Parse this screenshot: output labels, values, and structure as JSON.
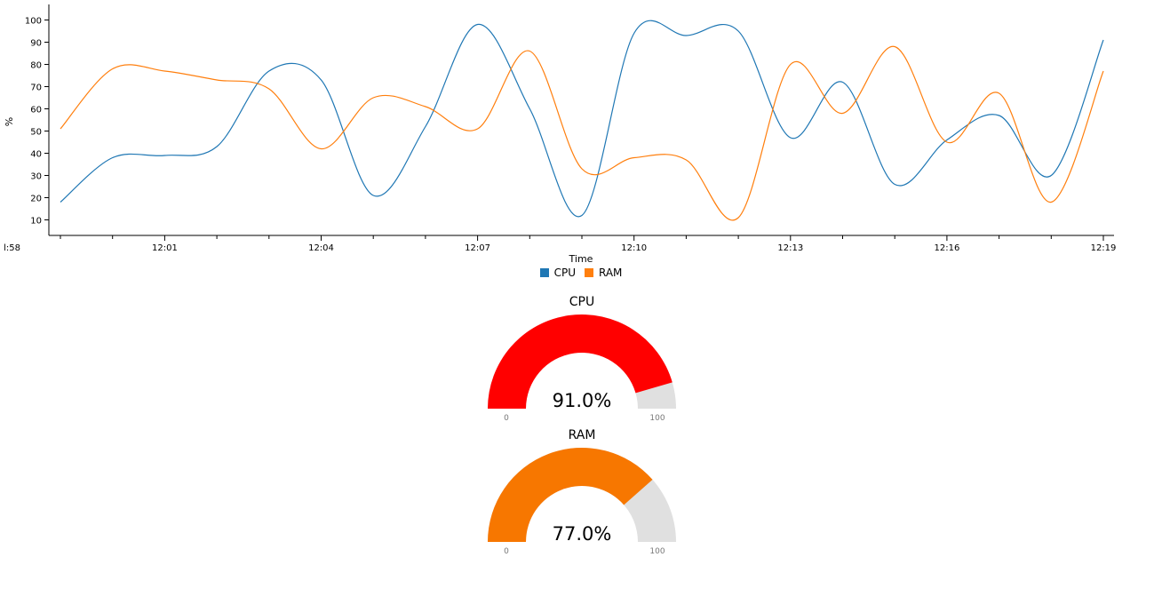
{
  "chart_data": {
    "type": "line",
    "xlabel": "Time",
    "ylabel": "%",
    "ylim": [
      3,
      107
    ],
    "y_ticks": [
      10,
      20,
      30,
      40,
      50,
      60,
      70,
      80,
      90,
      100
    ],
    "x_tick_labels": [
      "l:58",
      "12:01",
      "12:04",
      "12:07",
      "12:10",
      "12:13",
      "12:16",
      "12:19"
    ],
    "x": [
      "11:59",
      "12:00",
      "12:01",
      "12:02",
      "12:03",
      "12:04",
      "12:05",
      "12:06",
      "12:07",
      "12:08",
      "12:09",
      "12:10",
      "12:11",
      "12:12",
      "12:13",
      "12:14",
      "12:15",
      "12:16",
      "12:17",
      "12:18",
      "12:19"
    ],
    "series": [
      {
        "name": "CPU",
        "color": "#1f77b4",
        "values": [
          18,
          38,
          39,
          43,
          77,
          73,
          21,
          52,
          98,
          60,
          12,
          94,
          93,
          95,
          47,
          72,
          26,
          46,
          57,
          30,
          91
        ]
      },
      {
        "name": "RAM",
        "color": "#ff7f0e",
        "values": [
          51,
          78,
          77,
          73,
          69,
          42,
          65,
          61,
          51,
          86,
          33,
          38,
          37,
          11,
          80,
          58,
          88,
          45,
          67,
          18,
          77
        ]
      }
    ]
  },
  "gauges": [
    {
      "title": "CPU",
      "value": 91.0,
      "display": "91.0%",
      "min_label": "0",
      "max_label": "100",
      "color": "#ff0000"
    },
    {
      "title": "RAM",
      "value": 77.0,
      "display": "77.0%",
      "min_label": "0",
      "max_label": "100",
      "color": "#f77700"
    }
  ]
}
